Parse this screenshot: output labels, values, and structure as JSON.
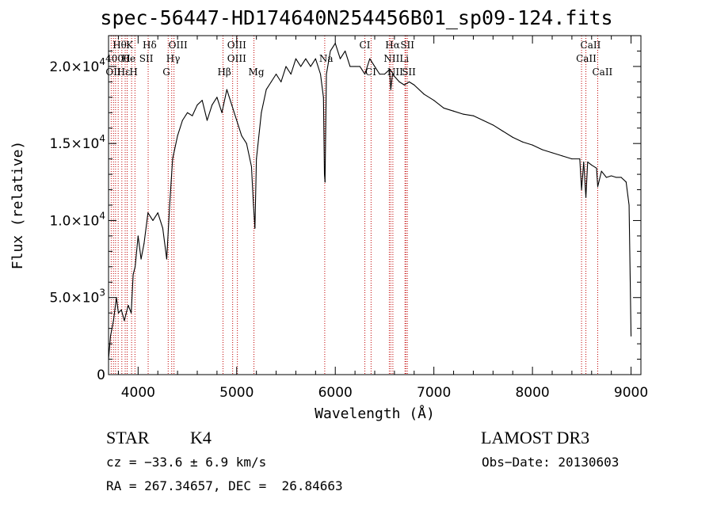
{
  "chart_data": {
    "type": "line",
    "title": "spec-56447-HD174640N254456B01_sp09-124.fits",
    "xlabel": "Wavelength (Å)",
    "ylabel": "Flux (relative)",
    "xlim": [
      3700,
      9100
    ],
    "ylim": [
      0,
      22000
    ],
    "x_ticks": [
      4000,
      5000,
      6000,
      7000,
      8000,
      9000
    ],
    "x_tick_labels": [
      "4000",
      "5000",
      "6000",
      "7000",
      "8000",
      "9000"
    ],
    "y_ticks": [
      0,
      5000,
      10000,
      15000,
      20000
    ],
    "y_tick_labels": [
      {
        "mantissa": "0",
        "exp": ""
      },
      {
        "mantissa": "5.0×10",
        "exp": "3"
      },
      {
        "mantissa": "1.0×10",
        "exp": "4"
      },
      {
        "mantissa": "1.5×10",
        "exp": "4"
      },
      {
        "mantissa": "2.0×10",
        "exp": "4"
      }
    ],
    "series": [
      {
        "name": "spectrum",
        "x": [
          3700,
          3720,
          3750,
          3780,
          3800,
          3830,
          3860,
          3900,
          3930,
          3950,
          3970,
          4000,
          4030,
          4060,
          4100,
          4150,
          4200,
          4250,
          4290,
          4320,
          4350,
          4400,
          4450,
          4500,
          4550,
          4600,
          4650,
          4700,
          4750,
          4800,
          4850,
          4900,
          4950,
          5000,
          5050,
          5100,
          5150,
          5170,
          5185,
          5200,
          5250,
          5300,
          5350,
          5400,
          5450,
          5500,
          5550,
          5600,
          5650,
          5700,
          5750,
          5800,
          5850,
          5880,
          5890,
          5896,
          5910,
          5950,
          6000,
          6050,
          6100,
          6150,
          6200,
          6250,
          6300,
          6350,
          6400,
          6450,
          6500,
          6550,
          6563,
          6580,
          6650,
          6700,
          6750,
          6800,
          6900,
          7000,
          7100,
          7200,
          7300,
          7400,
          7500,
          7600,
          7700,
          7800,
          7900,
          8000,
          8100,
          8200,
          8300,
          8400,
          8480,
          8498,
          8520,
          8542,
          8560,
          8600,
          8650,
          8662,
          8700,
          8750,
          8800,
          8850,
          8900,
          8950,
          8980,
          9000
        ],
        "y": [
          1000,
          2500,
          3500,
          5000,
          4000,
          4200,
          3500,
          4500,
          4000,
          6500,
          7000,
          9000,
          7500,
          8500,
          10500,
          10000,
          10500,
          9500,
          7500,
          11000,
          14000,
          15500,
          16500,
          17000,
          16800,
          17500,
          17800,
          16500,
          17500,
          18000,
          17000,
          18500,
          17500,
          16500,
          15500,
          15000,
          13500,
          11000,
          9500,
          14000,
          17000,
          18500,
          19000,
          19500,
          19000,
          20000,
          19500,
          20500,
          20000,
          20500,
          20000,
          20500,
          19500,
          18000,
          13000,
          12500,
          19500,
          21000,
          21500,
          20500,
          21000,
          20000,
          20000,
          20000,
          19500,
          20500,
          20000,
          19500,
          19500,
          19800,
          18500,
          19500,
          19000,
          18800,
          19000,
          18800,
          18200,
          17800,
          17300,
          17100,
          16900,
          16800,
          16500,
          16200,
          15800,
          15400,
          15100,
          14900,
          14600,
          14400,
          14200,
          14000,
          14000,
          12000,
          13800,
          11500,
          13800,
          13600,
          13400,
          12200,
          13200,
          12800,
          12900,
          12800,
          12800,
          12500,
          11000,
          2500
        ]
      }
    ],
    "line_labels": [
      {
        "text": "Hθ",
        "wave": 3798,
        "row": 0
      },
      {
        "text": "K",
        "wave": 3934,
        "row": 0
      },
      {
        "text": "Hδ",
        "wave": 4102,
        "row": 0
      },
      {
        "text": "OIII",
        "wave": 4364,
        "row": 0
      },
      {
        "text": "OIII",
        "wave": 4960,
        "row": 0
      },
      {
        "text": "CI",
        "wave": 6300,
        "row": 0
      },
      {
        "text": "Hα",
        "wave": 6563,
        "row": 0
      },
      {
        "text": "SII",
        "wave": 6716,
        "row": 0
      },
      {
        "text": "CaII",
        "wave": 8542,
        "row": 0
      },
      {
        "text": "4000",
        "wave": 3725,
        "row": 1
      },
      {
        "text": "He",
        "wave": 3889,
        "row": 1
      },
      {
        "text": "I",
        "wave": 3940,
        "row": 1
      },
      {
        "text": "SII",
        "wave": 4068,
        "row": 1
      },
      {
        "text": "Hγ",
        "wave": 4341,
        "row": 1
      },
      {
        "text": "OIII",
        "wave": 4960,
        "row": 1
      },
      {
        "text": "Na",
        "wave": 5893,
        "row": 1
      },
      {
        "text": "NII",
        "wave": 6548,
        "row": 1
      },
      {
        "text": "Li",
        "wave": 6708,
        "row": 1
      },
      {
        "text": "CaII",
        "wave": 8498,
        "row": 1
      },
      {
        "text": "OII",
        "wave": 3727,
        "row": 2
      },
      {
        "text": "Hε",
        "wave": 3842,
        "row": 2
      },
      {
        "text": "H",
        "wave": 3968,
        "row": 2
      },
      {
        "text": "G",
        "wave": 4305,
        "row": 2
      },
      {
        "text": "Hβ",
        "wave": 4861,
        "row": 2
      },
      {
        "text": "Mg",
        "wave": 5175,
        "row": 2
      },
      {
        "text": "CI",
        "wave": 6360,
        "row": 2
      },
      {
        "text": "NII",
        "wave": 6584,
        "row": 2
      },
      {
        "text": "SII",
        "wave": 6731,
        "row": 2
      },
      {
        "text": "CaII",
        "wave": 8662,
        "row": 2
      }
    ],
    "line_marker_waves": [
      3727,
      3750,
      3771,
      3798,
      3835,
      3869,
      3889,
      3934,
      3968,
      4102,
      4305,
      4341,
      4364,
      4861,
      4959,
      5007,
      5175,
      5893,
      6300,
      6363,
      6548,
      6563,
      6584,
      6707,
      6716,
      6731,
      8498,
      8542,
      8662
    ]
  },
  "info": {
    "object_class": "STAR",
    "subclass": "K4",
    "survey": "LAMOST DR3",
    "redshift_line": "cz = −33.6 ± 6.9 km/s",
    "obs_date_line": "Obs−Date: 20130603",
    "coords_line": "RA = 267.34657, DEC =  26.84663"
  },
  "colors": {
    "line": "#000000",
    "marker": "#c00000",
    "background": "#ffffff"
  }
}
